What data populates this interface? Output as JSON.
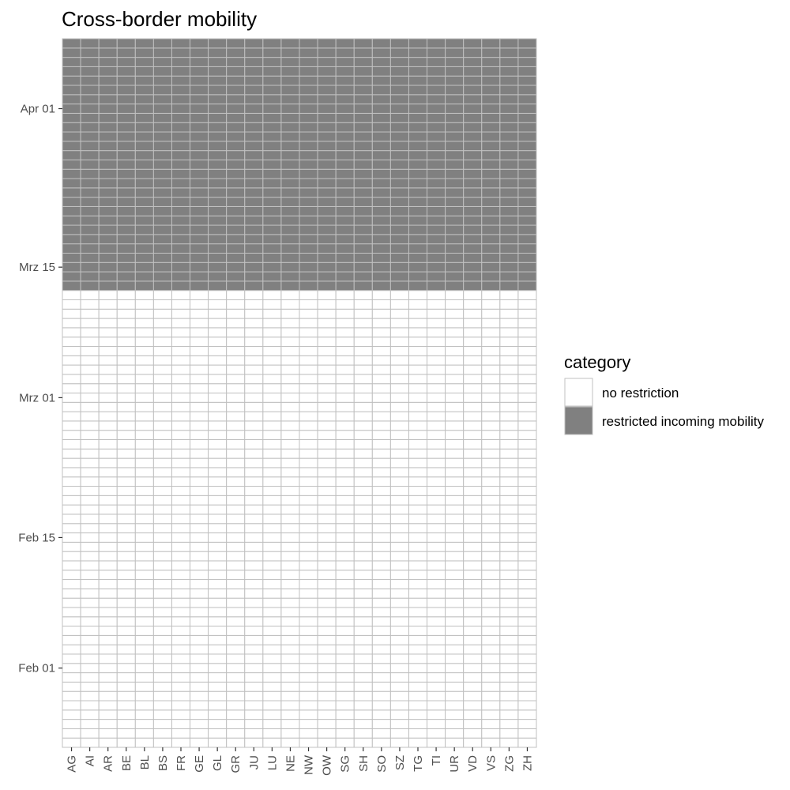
{
  "chart_data": {
    "type": "heatmap",
    "title": "Cross-border mobility",
    "xlabel": "",
    "ylabel": "",
    "x_categories": [
      "AG",
      "AI",
      "AR",
      "BE",
      "BL",
      "BS",
      "FR",
      "GE",
      "GL",
      "GR",
      "JU",
      "LU",
      "NE",
      "NW",
      "OW",
      "SG",
      "SH",
      "SO",
      "SZ",
      "TG",
      "TI",
      "UR",
      "VD",
      "VS",
      "ZG",
      "ZH"
    ],
    "y_range": [
      "2020-01-24",
      "2020-04-08"
    ],
    "y_ticks": [
      {
        "date": "2020-02-01",
        "label": "Feb 01"
      },
      {
        "date": "2020-02-15",
        "label": "Feb 15"
      },
      {
        "date": "2020-03-01",
        "label": "Mrz 01"
      },
      {
        "date": "2020-03-15",
        "label": "Mrz 15"
      },
      {
        "date": "2020-04-01",
        "label": "Apr 01"
      }
    ],
    "values": [
      {
        "from": "2020-01-24",
        "to": "2020-03-12",
        "category": "no restriction"
      },
      {
        "from": "2020-03-13",
        "to": "2020-04-08",
        "category": "restricted incoming mobility"
      }
    ],
    "legend": {
      "title": "category",
      "placement": "right",
      "items": [
        {
          "label": "no restriction",
          "color": "#ffffff"
        },
        {
          "label": "restricted incoming mobility",
          "color": "#808080"
        }
      ]
    },
    "tile_border_color": "#c0c0c0"
  }
}
